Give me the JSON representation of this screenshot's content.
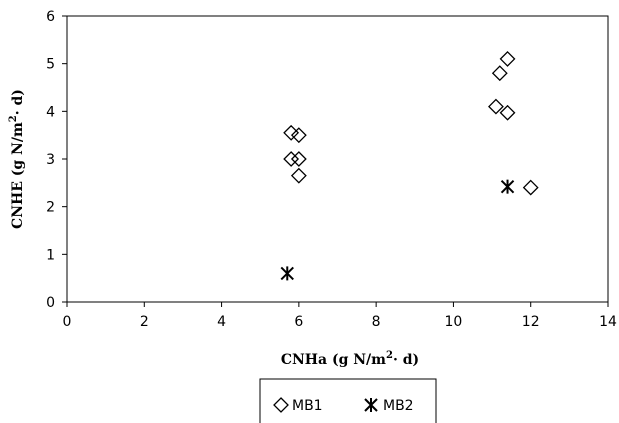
{
  "chart_data": {
    "type": "scatter",
    "xlabel": {
      "main": "CNHa (g N/m",
      "sup": "2",
      "tail": "· d)"
    },
    "ylabel": {
      "main": "CNHE (g N/m",
      "sup": "2",
      "tail": "· d)"
    },
    "xlim": [
      0,
      14
    ],
    "ylim": [
      0,
      6
    ],
    "xticks": [
      0,
      2,
      4,
      6,
      8,
      10,
      12,
      14
    ],
    "yticks": [
      0,
      1,
      2,
      3,
      4,
      5,
      6
    ],
    "grid": false,
    "legend_position": "bottom-center",
    "series": [
      {
        "name": "MB1",
        "marker": "diamond",
        "points": [
          {
            "x": 5.8,
            "y": 3.55
          },
          {
            "x": 6.0,
            "y": 3.5
          },
          {
            "x": 5.8,
            "y": 3.0
          },
          {
            "x": 6.0,
            "y": 3.0
          },
          {
            "x": 6.0,
            "y": 2.65
          },
          {
            "x": 11.1,
            "y": 4.1
          },
          {
            "x": 11.2,
            "y": 4.8
          },
          {
            "x": 11.4,
            "y": 5.1
          },
          {
            "x": 11.4,
            "y": 3.97
          },
          {
            "x": 12.0,
            "y": 2.4
          }
        ]
      },
      {
        "name": "MB2",
        "marker": "asterisk",
        "points": [
          {
            "x": 5.7,
            "y": 0.6
          },
          {
            "x": 11.4,
            "y": 2.42
          }
        ]
      }
    ]
  }
}
